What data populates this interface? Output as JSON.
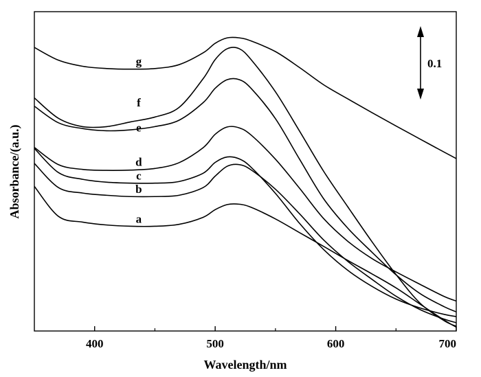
{
  "chart_data": {
    "type": "line",
    "xlabel": "Wavelength/nm",
    "ylabel": "Absorbance/(a.u.)",
    "xlim": [
      350,
      700
    ],
    "ylim": [
      0,
      1.0
    ],
    "x_ticks": [
      "400",
      "500",
      "600",
      "700"
    ],
    "x_tick_values": [
      400,
      500,
      600,
      700
    ],
    "y_ticks_shown": false,
    "scale_bar": {
      "label": "0.1",
      "value": 0.1
    },
    "line_color": "#000000",
    "series": [
      {
        "name": "a",
        "x": [
          350,
          370,
          390,
          410,
          430,
          450,
          470,
          490,
          500,
          510,
          520,
          530,
          550,
          570,
          590,
          610,
          630,
          650,
          670,
          690,
          700
        ],
        "y": [
          0.453,
          0.359,
          0.341,
          0.332,
          0.328,
          0.328,
          0.334,
          0.356,
          0.38,
          0.396,
          0.397,
          0.387,
          0.351,
          0.308,
          0.265,
          0.221,
          0.179,
          0.135,
          0.084,
          0.034,
          0.012
        ]
      },
      {
        "name": "b",
        "x": [
          350,
          370,
          390,
          410,
          430,
          450,
          470,
          490,
          500,
          510,
          520,
          530,
          550,
          570,
          590,
          610,
          630,
          650,
          670,
          690,
          700
        ],
        "y": [
          0.525,
          0.449,
          0.432,
          0.425,
          0.421,
          0.421,
          0.425,
          0.449,
          0.485,
          0.516,
          0.521,
          0.504,
          0.444,
          0.367,
          0.285,
          0.218,
          0.162,
          0.109,
          0.067,
          0.037,
          0.026
        ]
      },
      {
        "name": "c",
        "x": [
          350,
          370,
          390,
          410,
          430,
          450,
          470,
          490,
          500,
          510,
          520,
          530,
          550,
          570,
          590,
          610,
          630,
          650,
          670,
          690,
          700
        ],
        "y": [
          0.572,
          0.496,
          0.475,
          0.466,
          0.463,
          0.463,
          0.468,
          0.494,
          0.528,
          0.545,
          0.539,
          0.512,
          0.431,
          0.337,
          0.255,
          0.19,
          0.14,
          0.1,
          0.072,
          0.052,
          0.045
        ]
      },
      {
        "name": "d",
        "x": [
          350,
          370,
          390,
          410,
          430,
          450,
          470,
          490,
          500,
          510,
          520,
          530,
          550,
          570,
          590,
          610,
          630,
          650,
          670,
          690,
          700
        ],
        "y": [
          0.575,
          0.521,
          0.506,
          0.503,
          0.504,
          0.509,
          0.527,
          0.574,
          0.616,
          0.639,
          0.636,
          0.613,
          0.538,
          0.447,
          0.352,
          0.281,
          0.227,
          0.185,
          0.146,
          0.108,
          0.094
        ]
      },
      {
        "name": "e",
        "x": [
          350,
          370,
          390,
          410,
          430,
          450,
          470,
          490,
          500,
          510,
          520,
          530,
          550,
          570,
          590,
          610,
          630,
          650,
          670,
          690,
          700
        ],
        "y": [
          0.704,
          0.652,
          0.634,
          0.627,
          0.63,
          0.64,
          0.66,
          0.715,
          0.76,
          0.787,
          0.787,
          0.759,
          0.665,
          0.538,
          0.414,
          0.322,
          0.247,
          0.176,
          0.117,
          0.076,
          0.06
        ]
      },
      {
        "name": "f",
        "x": [
          350,
          370,
          390,
          410,
          430,
          450,
          470,
          490,
          500,
          510,
          520,
          530,
          550,
          570,
          590,
          610,
          630,
          650,
          670,
          690,
          700
        ],
        "y": [
          0.73,
          0.666,
          0.64,
          0.64,
          0.655,
          0.67,
          0.7,
          0.79,
          0.85,
          0.884,
          0.884,
          0.849,
          0.749,
          0.626,
          0.5,
          0.389,
          0.28,
          0.177,
          0.087,
          0.032,
          0.015
        ]
      },
      {
        "name": "g",
        "x": [
          350,
          370,
          390,
          410,
          430,
          450,
          470,
          490,
          500,
          510,
          520,
          530,
          550,
          570,
          590,
          610,
          630,
          650,
          670,
          690,
          700
        ],
        "y": [
          0.888,
          0.848,
          0.829,
          0.822,
          0.82,
          0.822,
          0.834,
          0.871,
          0.901,
          0.918,
          0.918,
          0.908,
          0.875,
          0.825,
          0.771,
          0.727,
          0.684,
          0.642,
          0.601,
          0.56,
          0.54
        ]
      }
    ]
  }
}
